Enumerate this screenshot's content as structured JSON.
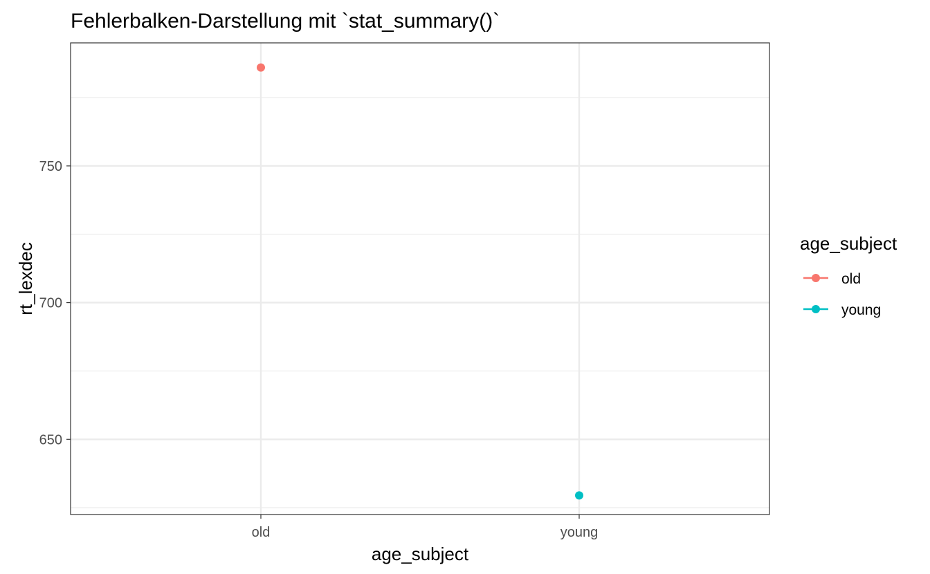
{
  "chart_data": {
    "type": "scatter",
    "title": "Fehlerbalken-Darstellung mit `stat_summary()`",
    "xlabel": "age_subject",
    "ylabel": "rt_lexdec",
    "categories": [
      "old",
      "young"
    ],
    "y_ticks": [
      650,
      700,
      750
    ],
    "ylim": [
      622.5,
      795
    ],
    "grid": true,
    "legend": {
      "title": "age_subject",
      "placement": "right",
      "entries": [
        {
          "label": "old",
          "color": "#F8766D"
        },
        {
          "label": "young",
          "color": "#00BFC4"
        }
      ]
    },
    "series": [
      {
        "category": "old",
        "y": 786.0,
        "color": "#F8766D"
      },
      {
        "category": "young",
        "y": 629.5,
        "color": "#00BFC4"
      }
    ]
  }
}
